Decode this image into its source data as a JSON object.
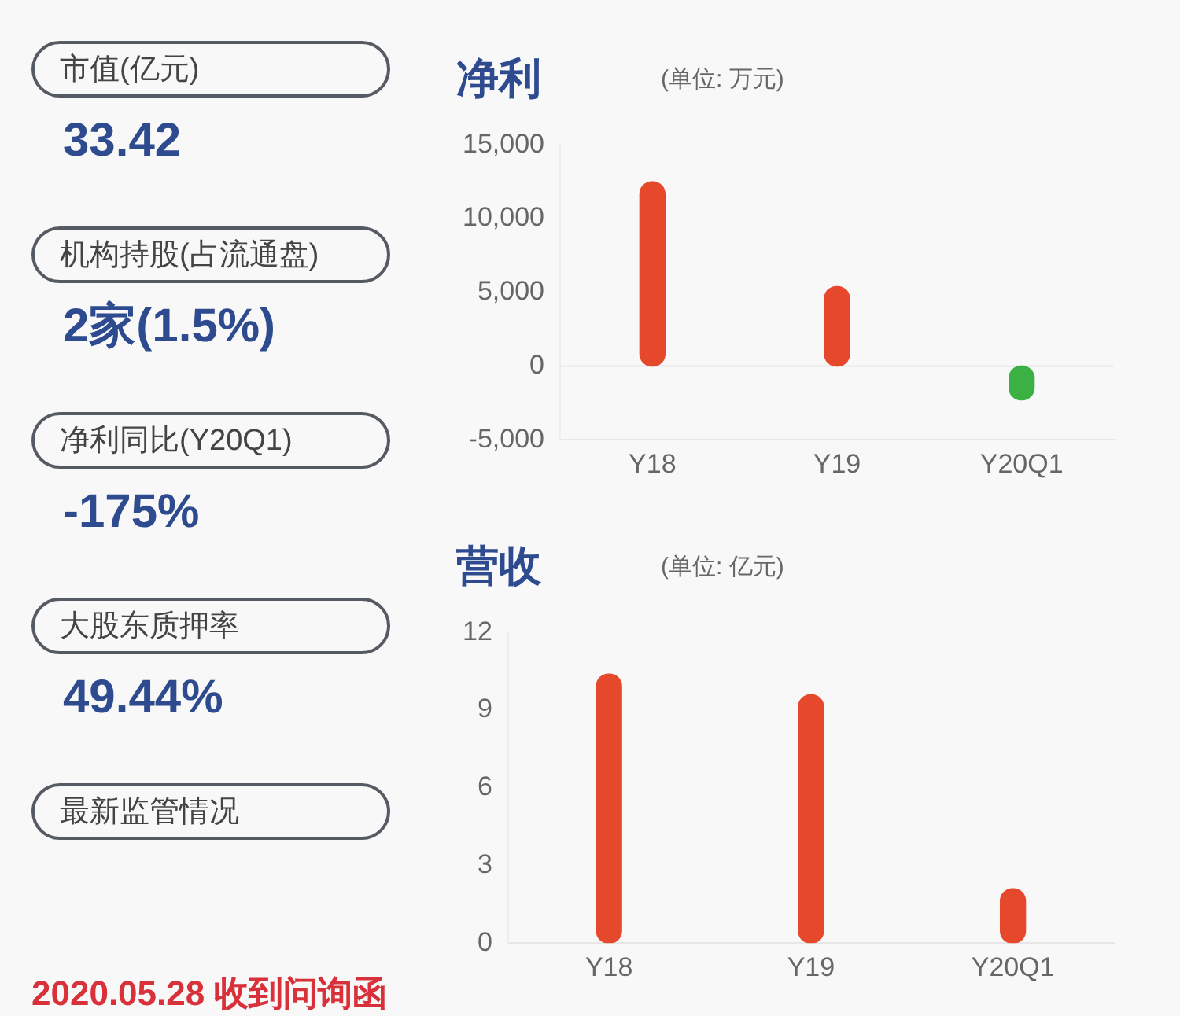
{
  "chart_data": [
    {
      "type": "other",
      "annotations": [
        "市值(亿元)",
        "33.42",
        "机构持股(占流通盘)",
        "2家(1.5%)",
        "净利同比(Y20Q1)",
        "-175%",
        "大股东质押率",
        "49.44%",
        "最新监管情况",
        "2020.05.28 收到问询函"
      ]
    },
    {
      "type": "bar",
      "title": "净利",
      "subtitle": "(单位: 万元)",
      "categories": [
        "Y18",
        "Y19",
        "Y20Q1"
      ],
      "values": [
        12500,
        5400,
        -2300
      ],
      "colors": [
        "#e5482b",
        "#e5482b",
        "#3bb143"
      ],
      "ylim": [
        -5000,
        15000
      ],
      "yticks": [
        {
          "value": -5000,
          "label": "-5,000"
        },
        {
          "value": 0,
          "label": "0"
        },
        {
          "value": 5000,
          "label": "5,000"
        },
        {
          "value": 10000,
          "label": "10,000"
        },
        {
          "value": 15000,
          "label": "15,000"
        }
      ],
      "ref_lines": [
        {
          "axis": "y",
          "value": 0,
          "color": "#e6e6e6"
        }
      ]
    },
    {
      "type": "bar",
      "title": "营收",
      "subtitle": "(单位: 亿元)",
      "categories": [
        "Y18",
        "Y19",
        "Y20Q1"
      ],
      "values": [
        10.4,
        9.6,
        2.1
      ],
      "color": "#e5482b",
      "ylim": [
        0,
        12
      ],
      "yticks": [
        0,
        3,
        6,
        9,
        12
      ]
    }
  ]
}
